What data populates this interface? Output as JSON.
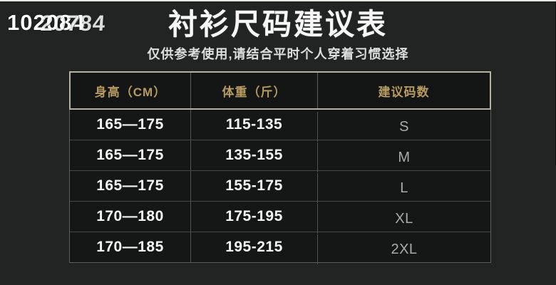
{
  "watermark": {
    "front": "102084",
    "ghost": "20784"
  },
  "titles": {
    "title": "衬衫尺码建议表",
    "subtitle": "仅供参考使用,请结合平时个人穿着习惯选择"
  },
  "chart_data": {
    "type": "table",
    "title": "衬衫尺码建议表",
    "subtitle": "仅供参考使用,请结合平时个人穿着习惯选择",
    "columns": [
      "身高（CM）",
      "体重（斤）",
      "建议码数"
    ],
    "rows": [
      [
        "165—175",
        "115-135",
        "S"
      ],
      [
        "165—175",
        "135-155",
        "M"
      ],
      [
        "165—175",
        "155-175",
        "L"
      ],
      [
        "170—180",
        "175-195",
        "XL"
      ],
      [
        "170—185",
        "195-215",
        "2XL"
      ]
    ],
    "layout": {
      "header_position": "top",
      "grid": "on",
      "columns_count": 3,
      "rows_count": 5
    }
  },
  "colors": {
    "background": "#212422",
    "table_body_bg": "#151716",
    "table_header_bg": "#141615",
    "header_text_gold": "#b79a5f",
    "cell_text": "#f4f4f4",
    "size_text_gray": "#a7acab",
    "frame_border": "#b7b1a1",
    "row_divider": "#454845",
    "column_divider": "#525552",
    "top_edge_line": "#e9e8e2",
    "title_text": "#f7f7f7",
    "subtitle_text": "#dedede",
    "watermark_text": "#fdfdfd"
  }
}
